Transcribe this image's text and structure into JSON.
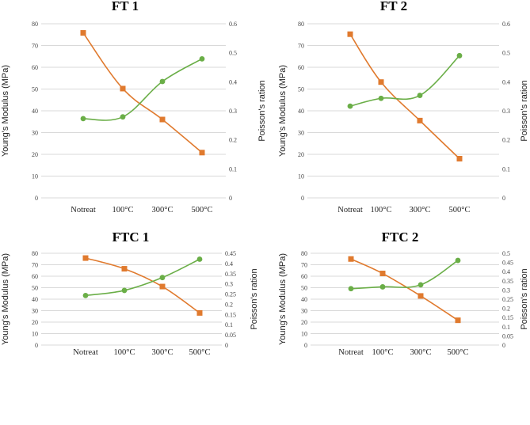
{
  "colors": {
    "youngs": "#E07A2E",
    "poisson": "#6AAE47",
    "grid": "#d9d9d9"
  },
  "chart_data": [
    {
      "type": "line",
      "title": "FT 1",
      "categories": [
        "Notreat",
        "100°C",
        "300°C",
        "500°C"
      ],
      "ylabel_left": "Young's Modulus (MPa)",
      "ylabel_right": "Poisson's ration",
      "ylim_left": [
        0,
        80
      ],
      "yticks_left": [
        "0",
        "10",
        "20",
        "30",
        "40",
        "50",
        "60",
        "70",
        "80"
      ],
      "ylim_right": [
        0,
        0.6
      ],
      "yticks_right": [
        "0",
        "0.1",
        "0.2",
        "0.3",
        "0.4",
        "0.5",
        "0.6"
      ],
      "series": [
        {
          "name": "Young's Modulus",
          "axis": "left",
          "marker": "square",
          "values": [
            75.8,
            50.2,
            36,
            20.8
          ]
        },
        {
          "name": "Poisson's ratio",
          "axis": "right",
          "marker": "circle",
          "values": [
            0.273,
            0.279,
            0.401,
            0.479
          ]
        }
      ]
    },
    {
      "type": "line",
      "title": "FT 2",
      "categories": [
        "Notreat",
        "100°C",
        "300°C",
        "500°C"
      ],
      "ylabel_left": "Young's Modulus (MPa)",
      "ylabel_right": "Poisson's ration",
      "ylim_left": [
        0,
        80
      ],
      "yticks_left": [
        "0",
        "10",
        "20",
        "30",
        "40",
        "50",
        "60",
        "70",
        "80"
      ],
      "ylim_right": [
        0,
        0.6
      ],
      "yticks_right": [
        "0",
        "0.1",
        "0.2",
        "0.3",
        "0.4",
        "0.5",
        "0.6"
      ],
      "series": [
        {
          "name": "Young's Modulus",
          "axis": "left",
          "marker": "square",
          "values": [
            75.2,
            53.2,
            35.5,
            18
          ]
        },
        {
          "name": "Poisson's ratio",
          "axis": "right",
          "marker": "circle",
          "values": [
            0.316,
            0.343,
            0.353,
            0.49
          ]
        }
      ]
    },
    {
      "type": "line",
      "title": "FTC 1",
      "categories": [
        "Notreat",
        "100°C",
        "300°C",
        "500°C"
      ],
      "ylabel_left": "Young's Modulus (MPa)",
      "ylabel_right": "Poisson's ration",
      "ylim_left": [
        0,
        80
      ],
      "yticks_left": [
        "0",
        "10",
        "20",
        "30",
        "40",
        "50",
        "60",
        "70",
        "80"
      ],
      "ylim_right": [
        0,
        0.45
      ],
      "yticks_right": [
        "0",
        "0.05",
        "0.1",
        "0.15",
        "0.2",
        "0.25",
        "0.3",
        "0.35",
        "0.4",
        "0.45"
      ],
      "series": [
        {
          "name": "Young's Modulus",
          "axis": "left",
          "marker": "square",
          "values": [
            75.8,
            66.5,
            51,
            28
          ]
        },
        {
          "name": "Poisson's ratio",
          "axis": "right",
          "marker": "circle",
          "values": [
            0.243,
            0.268,
            0.331,
            0.421
          ]
        }
      ]
    },
    {
      "type": "line",
      "title": "FTC 2",
      "categories": [
        "Notreat",
        "100°C",
        "300°C",
        "500°C"
      ],
      "ylabel_left": "Young's Modulus (MPa)",
      "ylabel_right": "Poisson's ration",
      "ylim_left": [
        0,
        80
      ],
      "yticks_left": [
        "0",
        "10",
        "20",
        "30",
        "40",
        "50",
        "60",
        "70",
        "80"
      ],
      "ylim_right": [
        0,
        0.5
      ],
      "yticks_right": [
        "0",
        "0.05",
        "0.1",
        "0.15",
        "0.2",
        "0.25",
        "0.3",
        "0.35",
        "0.4",
        "0.45",
        "0.5"
      ],
      "series": [
        {
          "name": "Young's Modulus",
          "axis": "left",
          "marker": "square",
          "values": [
            75,
            62.4,
            42.8,
            21.6
          ]
        },
        {
          "name": "Poisson's ratio",
          "axis": "right",
          "marker": "circle",
          "values": [
            0.307,
            0.317,
            0.328,
            0.461
          ]
        }
      ]
    }
  ]
}
